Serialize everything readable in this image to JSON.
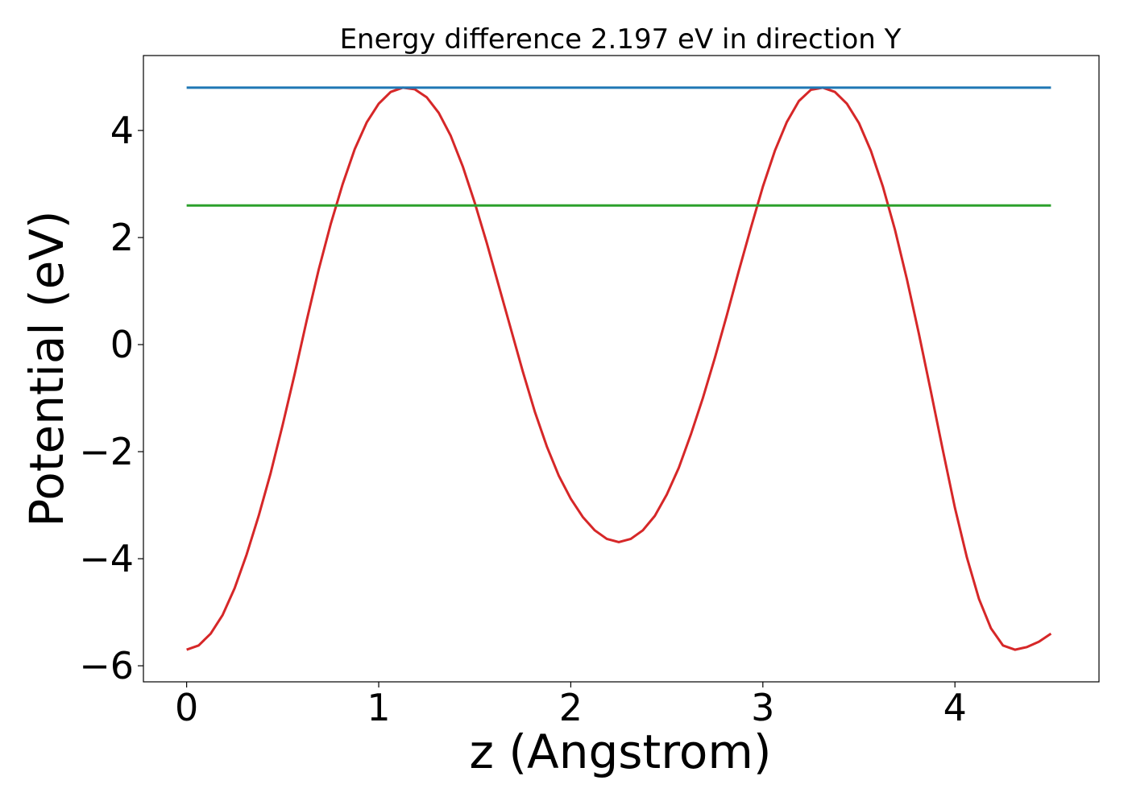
{
  "chart_data": {
    "type": "line",
    "title": "Energy difference 2.197 eV in direction Y",
    "xlabel": "z (Angstrom)",
    "ylabel": "Potential (eV)",
    "xlim": [
      -0.225,
      4.75
    ],
    "ylim": [
      -6.3,
      5.4
    ],
    "xticks": [
      0,
      1,
      2,
      3,
      4
    ],
    "xtick_labels": [
      "0",
      "1",
      "2",
      "3",
      "4"
    ],
    "yticks": [
      4,
      2,
      0,
      -2,
      -4,
      -6
    ],
    "ytick_labels": [
      "4",
      "2",
      "0",
      "−2",
      "−4",
      "−6"
    ],
    "grid": false,
    "series": [
      {
        "color": "#d62728",
        "x": [
          0.0,
          0.0625,
          0.125,
          0.1875,
          0.25,
          0.3125,
          0.375,
          0.4375,
          0.5,
          0.5625,
          0.625,
          0.6875,
          0.75,
          0.8125,
          0.875,
          0.9375,
          1.0,
          1.0625,
          1.125,
          1.1875,
          1.25,
          1.3125,
          1.375,
          1.4375,
          1.5,
          1.5625,
          1.625,
          1.6875,
          1.75,
          1.8125,
          1.875,
          1.9375,
          2.0,
          2.0625,
          2.125,
          2.1875,
          2.25,
          2.3125,
          2.375,
          2.4375,
          2.5,
          2.5625,
          2.625,
          2.6875,
          2.75,
          2.8125,
          2.875,
          2.9375,
          3.0,
          3.0625,
          3.125,
          3.1875,
          3.25,
          3.3125,
          3.375,
          3.4375,
          3.5,
          3.5625,
          3.625,
          3.6875,
          3.75,
          3.8125,
          3.875,
          3.9375,
          4.0,
          4.0625,
          4.125,
          4.1875,
          4.25,
          4.3125,
          4.375,
          4.4375,
          4.5
        ],
        "y": [
          -5.7,
          -5.62,
          -5.4,
          -5.05,
          -4.55,
          -3.92,
          -3.2,
          -2.4,
          -1.5,
          -0.55,
          0.45,
          1.4,
          2.25,
          3.0,
          3.65,
          4.15,
          4.5,
          4.72,
          4.8,
          4.77,
          4.62,
          4.33,
          3.9,
          3.33,
          2.65,
          1.9,
          1.1,
          0.3,
          -0.5,
          -1.25,
          -1.9,
          -2.45,
          -2.88,
          -3.22,
          -3.47,
          -3.63,
          -3.69,
          -3.63,
          -3.47,
          -3.2,
          -2.8,
          -2.3,
          -1.68,
          -1.0,
          -0.25,
          0.55,
          1.38,
          2.18,
          2.95,
          3.62,
          4.16,
          4.55,
          4.76,
          4.8,
          4.72,
          4.5,
          4.14,
          3.62,
          2.95,
          2.15,
          1.22,
          0.2,
          -0.88,
          -1.98,
          -3.05,
          -3.98,
          -4.75,
          -5.3,
          -5.62,
          -5.7,
          -5.65,
          -5.55,
          -5.4
        ]
      },
      {
        "color": "#1f77b4",
        "x": [
          0.0,
          4.5
        ],
        "y": [
          4.8,
          4.8
        ]
      },
      {
        "color": "#2ca02c",
        "x": [
          0.0,
          4.5
        ],
        "y": [
          2.6,
          2.6
        ]
      }
    ]
  }
}
